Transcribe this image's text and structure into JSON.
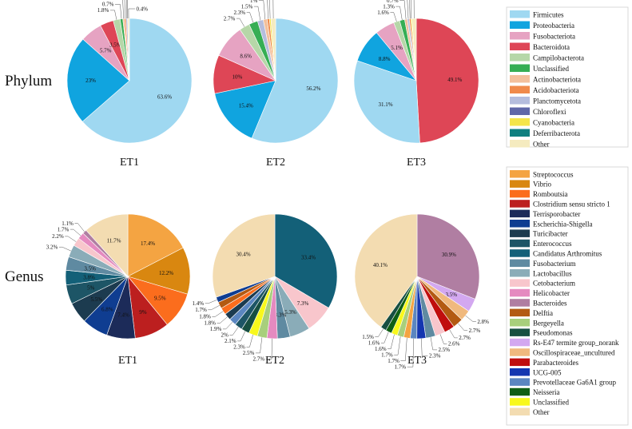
{
  "row_labels": {
    "phylum": "Phylum",
    "genus": "Genus"
  },
  "chart_data": [
    {
      "type": "pie",
      "id": "phylum",
      "row_label": "Phylum",
      "legend": [
        {
          "name": "Firmicutes",
          "color": "#9fd8f1"
        },
        {
          "name": "Proteobacteria",
          "color": "#10a4df"
        },
        {
          "name": "Fusobacteriota",
          "color": "#e6a3c2"
        },
        {
          "name": "Bacteroidota",
          "color": "#de4656"
        },
        {
          "name": "Campilobacterota",
          "color": "#b6d7a8"
        },
        {
          "name": "Unclassified",
          "color": "#36ae54"
        },
        {
          "name": "Actinobacteriota",
          "color": "#f3c09c"
        },
        {
          "name": "Acidobacteriota",
          "color": "#f08a4b"
        },
        {
          "name": "Planctomycetota",
          "color": "#b5bddd"
        },
        {
          "name": "Chloroflexi",
          "color": "#6068a8"
        },
        {
          "name": "Cyanobacteria",
          "color": "#f4e54a"
        },
        {
          "name": "Deferribacterota",
          "color": "#0f7f7f"
        },
        {
          "name": "Other",
          "color": "#f5ebbf"
        }
      ],
      "pies": [
        {
          "title": "ET1",
          "slices": [
            {
              "name": "Firmicutes",
              "value": 63.6,
              "label": "63.6%",
              "pos": "in"
            },
            {
              "name": "Proteobacteria",
              "value": 23,
              "label": "23%",
              "pos": "in"
            },
            {
              "name": "Fusobacteriota",
              "value": 5.7,
              "label": "5.7%",
              "pos": "in"
            },
            {
              "name": "Bacteroidota",
              "value": 3.5,
              "label": "3.5%",
              "pos": "in"
            },
            {
              "name": "Campilobacterota",
              "value": 1.8,
              "label": "1.8%",
              "pos": "out"
            },
            {
              "name": "Unclassified",
              "value": 0.7,
              "label": "0.7%",
              "pos": "out"
            },
            {
              "name": "Actinobacteriota",
              "value": 0.4,
              "label": "0.4%",
              "pos": "out"
            },
            {
              "name": "Acidobacteriota",
              "value": 0.4,
              "label": "0.4%",
              "pos": "out"
            },
            {
              "name": "Planctomycetota",
              "value": 0.4,
              "label": "0.4%",
              "pos": "out"
            },
            {
              "name": "Chloroflexi",
              "value": 0.1,
              "label": "0.1%",
              "pos": "out"
            },
            {
              "name": "Other",
              "value": 0.4,
              "label": "0.4%",
              "pos": "out"
            }
          ]
        },
        {
          "title": "ET2",
          "slices": [
            {
              "name": "Firmicutes",
              "value": 56.2,
              "label": "56.2%",
              "pos": "in"
            },
            {
              "name": "Proteobacteria",
              "value": 15.4,
              "label": "15.4%",
              "pos": "in"
            },
            {
              "name": "Bacteroidota",
              "value": 10,
              "label": "10%",
              "pos": "in"
            },
            {
              "name": "Fusobacteriota",
              "value": 8.6,
              "label": "8.6%",
              "pos": "in"
            },
            {
              "name": "Campilobacterota",
              "value": 2.7,
              "label": "2.7%",
              "pos": "out"
            },
            {
              "name": "Unclassified",
              "value": 2.3,
              "label": "2.3%",
              "pos": "out"
            },
            {
              "name": "Planctomycetota",
              "value": 1.5,
              "label": "1.5%",
              "pos": "out"
            },
            {
              "name": "Actinobacteriota",
              "value": 1,
              "label": "1%",
              "pos": "out"
            },
            {
              "name": "Acidobacteriota",
              "value": 0.6,
              "label": "0.6%",
              "pos": "out"
            },
            {
              "name": "Cyanobacteria",
              "value": 0.4,
              "label": "0.4%",
              "pos": "out"
            },
            {
              "name": "Other",
              "value": 1.2,
              "label": "1.2%",
              "pos": "out"
            }
          ]
        },
        {
          "title": "ET3",
          "slices": [
            {
              "name": "Bacteroidota",
              "value": 49.1,
              "label": "49.1%",
              "pos": "in"
            },
            {
              "name": "Firmicutes",
              "value": 31.1,
              "label": "31.1%",
              "pos": "in"
            },
            {
              "name": "Proteobacteria",
              "value": 8.8,
              "label": "8.8%",
              "pos": "in"
            },
            {
              "name": "Fusobacteriota",
              "value": 5.1,
              "label": "5.1%",
              "pos": "in"
            },
            {
              "name": "Campilobacterota",
              "value": 1.6,
              "label": "1.6%",
              "pos": "out"
            },
            {
              "name": "Unclassified",
              "value": 1.3,
              "label": "1.3%",
              "pos": "out"
            },
            {
              "name": "Actinobacteriota",
              "value": 0.7,
              "label": "0.7%",
              "pos": "out"
            },
            {
              "name": "Planctomycetota",
              "value": 0.5,
              "label": "0.5%",
              "pos": "out"
            },
            {
              "name": "Acidobacteriota",
              "value": 0.4,
              "label": "0.4%",
              "pos": "out"
            },
            {
              "name": "Cyanobacteria",
              "value": 0.3,
              "label": "0.3%",
              "pos": "out"
            },
            {
              "name": "Other",
              "value": 1.1,
              "label": "1.1%",
              "pos": "out"
            }
          ]
        }
      ]
    },
    {
      "type": "pie",
      "id": "genus",
      "row_label": "Genus",
      "legend": [
        {
          "name": "Streptococcus",
          "color": "#f4a442"
        },
        {
          "name": "Vibrio",
          "color": "#d98710"
        },
        {
          "name": "Romboutsia",
          "color": "#fb6d1d"
        },
        {
          "name": "Clostridium sensu stricto 1",
          "color": "#bc1f1f"
        },
        {
          "name": "Terrisporobacter",
          "color": "#1c2b59"
        },
        {
          "name": "Escherichia-Shigella",
          "color": "#0f3d91"
        },
        {
          "name": "Turicibacter",
          "color": "#1c3b4f"
        },
        {
          "name": "Enterococcus",
          "color": "#1d5566"
        },
        {
          "name": "Candidatus Arthromitus",
          "color": "#136078"
        },
        {
          "name": "Fusobacterium",
          "color": "#5f8aa1"
        },
        {
          "name": "Lactobacillus",
          "color": "#8aacb8"
        },
        {
          "name": "Cetobacterium",
          "color": "#f8c6cc"
        },
        {
          "name": "Helicobacter",
          "color": "#e58ac0"
        },
        {
          "name": "Bacteroides",
          "color": "#b07ea2"
        },
        {
          "name": "Delftia",
          "color": "#b35a12"
        },
        {
          "name": "Bergeyella",
          "color": "#a8cf7c"
        },
        {
          "name": "Pseudomonas",
          "color": "#174f41"
        },
        {
          "name": "Rs-E47 termite group_norank",
          "color": "#d3a8f0"
        },
        {
          "name": "Oscillospiraceae_uncultured",
          "color": "#f0b97e"
        },
        {
          "name": "Parabacteroides",
          "color": "#c00d0d"
        },
        {
          "name": "UCG-005",
          "color": "#1436b0"
        },
        {
          "name": "Prevotellaceae Ga6A1 group",
          "color": "#5b86c0"
        },
        {
          "name": "Neisseria",
          "color": "#0f5e14"
        },
        {
          "name": "Unclassified",
          "color": "#f8f81c"
        },
        {
          "name": "Other",
          "color": "#f3dcb1"
        }
      ],
      "pies": [
        {
          "title": "ET1",
          "slices": [
            {
              "name": "Streptococcus",
              "value": 17.4,
              "label": "17.4%",
              "pos": "in"
            },
            {
              "name": "Vibrio",
              "value": 12.2,
              "label": "12.2%",
              "pos": "in"
            },
            {
              "name": "Romboutsia",
              "value": 9.5,
              "label": "9.5%",
              "pos": "in"
            },
            {
              "name": "Clostridium sensu stricto 1",
              "value": 9,
              "label": "9%",
              "pos": "in"
            },
            {
              "name": "Terrisporobacter",
              "value": 7.4,
              "label": "7.4%",
              "pos": "in"
            },
            {
              "name": "Escherichia-Shigella",
              "value": 6.8,
              "label": "6.8%",
              "pos": "in"
            },
            {
              "name": "Turicibacter",
              "value": 5.5,
              "label": "5.5%",
              "pos": "in"
            },
            {
              "name": "Enterococcus",
              "value": 5,
              "label": "5%",
              "pos": "in"
            },
            {
              "name": "Candidatus Arthromitus",
              "value": 3.8,
              "label": "3.8%",
              "pos": "in"
            },
            {
              "name": "Fusobacterium",
              "value": 3.5,
              "label": "3.5%",
              "pos": "in"
            },
            {
              "name": "Lactobacillus",
              "value": 3.2,
              "label": "3.2%",
              "pos": "out"
            },
            {
              "name": "Cetobacterium",
              "value": 2.2,
              "label": "2.2%",
              "pos": "out"
            },
            {
              "name": "Helicobacter",
              "value": 1.7,
              "label": "1.7%",
              "pos": "out"
            },
            {
              "name": "Bacteroides",
              "value": 1.1,
              "label": "1.1%",
              "pos": "out"
            },
            {
              "name": "Other",
              "value": 11.7,
              "label": "11.7%",
              "pos": "in"
            }
          ]
        },
        {
          "title": "ET2",
          "slices": [
            {
              "name": "Candidatus Arthromitus",
              "value": 33.4,
              "label": "33.4%",
              "pos": "in"
            },
            {
              "name": "Cetobacterium",
              "value": 7.3,
              "label": "7.3%",
              "pos": "in"
            },
            {
              "name": "Lactobacillus",
              "value": 5.3,
              "label": "5.3%",
              "pos": "in"
            },
            {
              "name": "Fusobacterium",
              "value": 3.3,
              "label": "3.3%",
              "pos": "in"
            },
            {
              "name": "Helicobacter",
              "value": 2.7,
              "label": "2.7%",
              "pos": "out"
            },
            {
              "name": "Bergeyella",
              "value": 2.5,
              "label": "2.5%",
              "pos": "out"
            },
            {
              "name": "Unclassified",
              "value": 2.3,
              "label": "2.3%",
              "pos": "out"
            },
            {
              "name": "Pseudomonas",
              "value": 2.1,
              "label": "2.1%",
              "pos": "out"
            },
            {
              "name": "Enterococcus",
              "value": 2,
              "label": "2%",
              "pos": "out"
            },
            {
              "name": "Prevotellaceae Ga6A1 group",
              "value": 1.9,
              "label": "1.9%",
              "pos": "out"
            },
            {
              "name": "Turicibacter",
              "value": 1.8,
              "label": "1.8%",
              "pos": "out"
            },
            {
              "name": "Romboutsia",
              "value": 1.8,
              "label": "1.8%",
              "pos": "out"
            },
            {
              "name": "Delftia",
              "value": 1.7,
              "label": "1.7%",
              "pos": "out"
            },
            {
              "name": "Escherichia-Shigella",
              "value": 1.4,
              "label": "1.4%",
              "pos": "out"
            },
            {
              "name": "Other",
              "value": 30.4,
              "label": "30.4%",
              "pos": "in"
            }
          ]
        },
        {
          "title": "ET3",
          "slices": [
            {
              "name": "Bacteroides",
              "value": 30.9,
              "label": "30.9%",
              "pos": "in"
            },
            {
              "name": "Rs-E47 termite group_norank",
              "value": 3.5,
              "label": "3.5%",
              "pos": "in"
            },
            {
              "name": "Oscillospiraceae_uncultured",
              "value": 2.8,
              "label": "2.8%",
              "pos": "out"
            },
            {
              "name": "Delftia",
              "value": 2.7,
              "label": "2.7%",
              "pos": "out"
            },
            {
              "name": "Parabacteroides",
              "value": 2.7,
              "label": "2.7%",
              "pos": "out"
            },
            {
              "name": "Cetobacterium",
              "value": 2.6,
              "label": "2.6%",
              "pos": "out"
            },
            {
              "name": "Fusobacterium",
              "value": 2.5,
              "label": "2.5%",
              "pos": "out"
            },
            {
              "name": "UCG-005",
              "value": 2.3,
              "label": "2.3%",
              "pos": "out"
            },
            {
              "name": "Prevotellaceae Ga6A1 group",
              "value": 1.7,
              "label": "1.7%",
              "pos": "out"
            },
            {
              "name": "Streptococcus",
              "value": 1.7,
              "label": "1.7%",
              "pos": "out"
            },
            {
              "name": "Bergeyella",
              "value": 1.7,
              "label": "1.7%",
              "pos": "out"
            },
            {
              "name": "Unclassified",
              "value": 1.6,
              "label": "1.6%",
              "pos": "out"
            },
            {
              "name": "Neisseria",
              "value": 1.6,
              "label": "1.6%",
              "pos": "out"
            },
            {
              "name": "Pseudomonas",
              "value": 1.5,
              "label": "1.5%",
              "pos": "out"
            },
            {
              "name": "Other",
              "value": 40.1,
              "label": "40.1%",
              "pos": "in"
            }
          ]
        }
      ]
    }
  ]
}
